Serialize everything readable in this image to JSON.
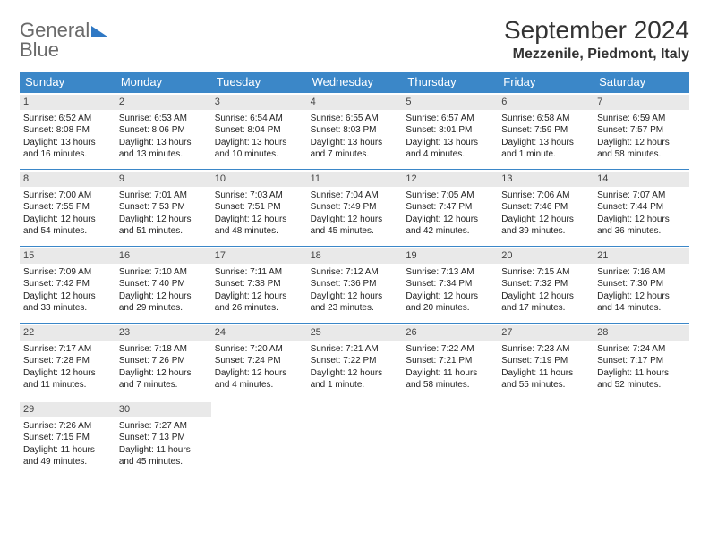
{
  "logo": {
    "text1": "General",
    "text2": "Blue"
  },
  "header": {
    "month_title": "September 2024",
    "location": "Mezzenile, Piedmont, Italy"
  },
  "styling": {
    "header_bg": "#3b87c8",
    "header_text": "#ffffff",
    "daynum_bg": "#e9e9e9",
    "border_color": "#3b87c8",
    "body_text": "#222222",
    "cell_fontsize": 10,
    "month_fontsize": 28,
    "location_fontsize": 16
  },
  "weekdays": [
    "Sunday",
    "Monday",
    "Tuesday",
    "Wednesday",
    "Thursday",
    "Friday",
    "Saturday"
  ],
  "days": [
    {
      "n": "1",
      "sunrise": "6:52 AM",
      "sunset": "8:08 PM",
      "dl": "Daylight: 13 hours and 16 minutes."
    },
    {
      "n": "2",
      "sunrise": "6:53 AM",
      "sunset": "8:06 PM",
      "dl": "Daylight: 13 hours and 13 minutes."
    },
    {
      "n": "3",
      "sunrise": "6:54 AM",
      "sunset": "8:04 PM",
      "dl": "Daylight: 13 hours and 10 minutes."
    },
    {
      "n": "4",
      "sunrise": "6:55 AM",
      "sunset": "8:03 PM",
      "dl": "Daylight: 13 hours and 7 minutes."
    },
    {
      "n": "5",
      "sunrise": "6:57 AM",
      "sunset": "8:01 PM",
      "dl": "Daylight: 13 hours and 4 minutes."
    },
    {
      "n": "6",
      "sunrise": "6:58 AM",
      "sunset": "7:59 PM",
      "dl": "Daylight: 13 hours and 1 minute."
    },
    {
      "n": "7",
      "sunrise": "6:59 AM",
      "sunset": "7:57 PM",
      "dl": "Daylight: 12 hours and 58 minutes."
    },
    {
      "n": "8",
      "sunrise": "7:00 AM",
      "sunset": "7:55 PM",
      "dl": "Daylight: 12 hours and 54 minutes."
    },
    {
      "n": "9",
      "sunrise": "7:01 AM",
      "sunset": "7:53 PM",
      "dl": "Daylight: 12 hours and 51 minutes."
    },
    {
      "n": "10",
      "sunrise": "7:03 AM",
      "sunset": "7:51 PM",
      "dl": "Daylight: 12 hours and 48 minutes."
    },
    {
      "n": "11",
      "sunrise": "7:04 AM",
      "sunset": "7:49 PM",
      "dl": "Daylight: 12 hours and 45 minutes."
    },
    {
      "n": "12",
      "sunrise": "7:05 AM",
      "sunset": "7:47 PM",
      "dl": "Daylight: 12 hours and 42 minutes."
    },
    {
      "n": "13",
      "sunrise": "7:06 AM",
      "sunset": "7:46 PM",
      "dl": "Daylight: 12 hours and 39 minutes."
    },
    {
      "n": "14",
      "sunrise": "7:07 AM",
      "sunset": "7:44 PM",
      "dl": "Daylight: 12 hours and 36 minutes."
    },
    {
      "n": "15",
      "sunrise": "7:09 AM",
      "sunset": "7:42 PM",
      "dl": "Daylight: 12 hours and 33 minutes."
    },
    {
      "n": "16",
      "sunrise": "7:10 AM",
      "sunset": "7:40 PM",
      "dl": "Daylight: 12 hours and 29 minutes."
    },
    {
      "n": "17",
      "sunrise": "7:11 AM",
      "sunset": "7:38 PM",
      "dl": "Daylight: 12 hours and 26 minutes."
    },
    {
      "n": "18",
      "sunrise": "7:12 AM",
      "sunset": "7:36 PM",
      "dl": "Daylight: 12 hours and 23 minutes."
    },
    {
      "n": "19",
      "sunrise": "7:13 AM",
      "sunset": "7:34 PM",
      "dl": "Daylight: 12 hours and 20 minutes."
    },
    {
      "n": "20",
      "sunrise": "7:15 AM",
      "sunset": "7:32 PM",
      "dl": "Daylight: 12 hours and 17 minutes."
    },
    {
      "n": "21",
      "sunrise": "7:16 AM",
      "sunset": "7:30 PM",
      "dl": "Daylight: 12 hours and 14 minutes."
    },
    {
      "n": "22",
      "sunrise": "7:17 AM",
      "sunset": "7:28 PM",
      "dl": "Daylight: 12 hours and 11 minutes."
    },
    {
      "n": "23",
      "sunrise": "7:18 AM",
      "sunset": "7:26 PM",
      "dl": "Daylight: 12 hours and 7 minutes."
    },
    {
      "n": "24",
      "sunrise": "7:20 AM",
      "sunset": "7:24 PM",
      "dl": "Daylight: 12 hours and 4 minutes."
    },
    {
      "n": "25",
      "sunrise": "7:21 AM",
      "sunset": "7:22 PM",
      "dl": "Daylight: 12 hours and 1 minute."
    },
    {
      "n": "26",
      "sunrise": "7:22 AM",
      "sunset": "7:21 PM",
      "dl": "Daylight: 11 hours and 58 minutes."
    },
    {
      "n": "27",
      "sunrise": "7:23 AM",
      "sunset": "7:19 PM",
      "dl": "Daylight: 11 hours and 55 minutes."
    },
    {
      "n": "28",
      "sunrise": "7:24 AM",
      "sunset": "7:17 PM",
      "dl": "Daylight: 11 hours and 52 minutes."
    },
    {
      "n": "29",
      "sunrise": "7:26 AM",
      "sunset": "7:15 PM",
      "dl": "Daylight: 11 hours and 49 minutes."
    },
    {
      "n": "30",
      "sunrise": "7:27 AM",
      "sunset": "7:13 PM",
      "dl": "Daylight: 11 hours and 45 minutes."
    }
  ],
  "labels": {
    "sunrise_prefix": "Sunrise: ",
    "sunset_prefix": "Sunset: "
  }
}
